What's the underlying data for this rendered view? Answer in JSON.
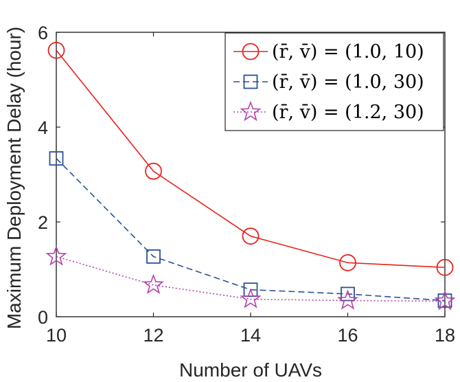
{
  "chart_data": {
    "type": "line",
    "title": "",
    "xlabel": "Number of UAVs",
    "ylabel": "Maximum Deployment Delay (hour)",
    "x": [
      10,
      12,
      14,
      16,
      18
    ],
    "xlim": [
      10,
      18
    ],
    "ylim": [
      0,
      6
    ],
    "xticks": [
      "10",
      "12",
      "14",
      "16",
      "18"
    ],
    "yticks": [
      "0",
      "2",
      "4",
      "6"
    ],
    "grid": false,
    "legend_position": "top-right",
    "series": [
      {
        "name": "(r̄, v̄) = (1.0, 10)",
        "values": [
          5.62,
          3.07,
          1.7,
          1.14,
          1.04
        ],
        "color": "#e8221c",
        "marker": "circle",
        "line": "solid"
      },
      {
        "name": "(r̄, v̄) = (1.0, 30)",
        "values": [
          3.34,
          1.27,
          0.57,
          0.48,
          0.34
        ],
        "color": "#2a4f98",
        "marker": "square",
        "line": "dashed"
      },
      {
        "name": "(r̄, v̄) = (1.2, 30)",
        "values": [
          1.27,
          0.67,
          0.37,
          0.34,
          0.33
        ],
        "color": "#b541ad",
        "marker": "star",
        "line": "dotted"
      }
    ]
  }
}
